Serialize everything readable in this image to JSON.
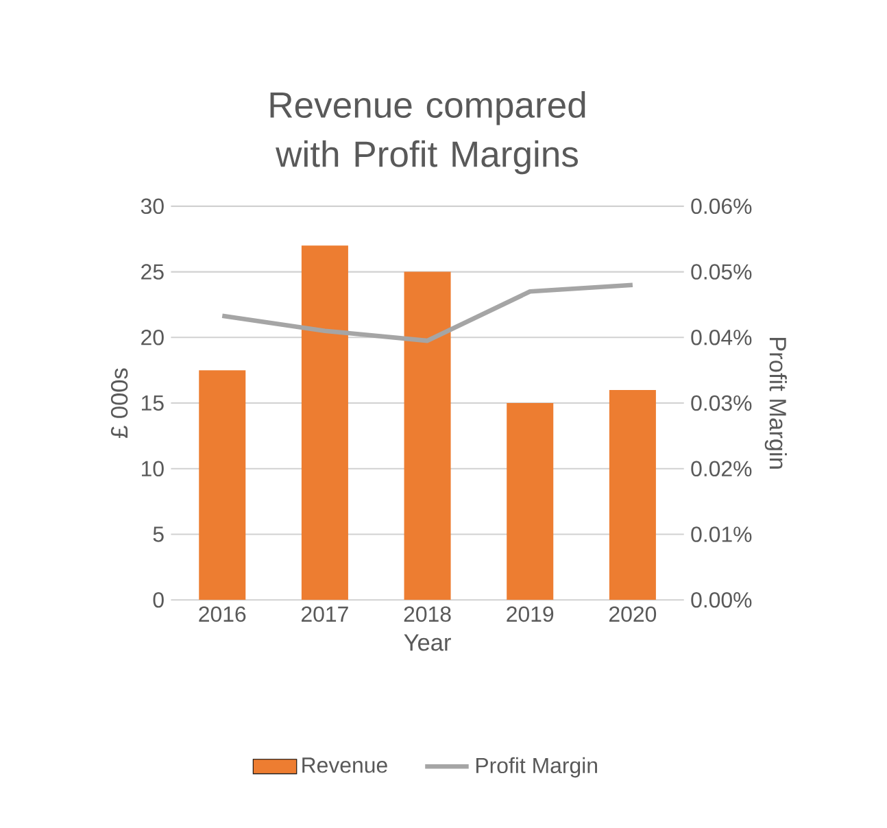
{
  "chart_data": {
    "type": "bar",
    "title": "Revenue compared with Profit Margins",
    "xlabel": "Year",
    "ylabel": "£ 000s",
    "y2label": "Profit Margin",
    "categories": [
      "2016",
      "2017",
      "2018",
      "2019",
      "2020"
    ],
    "series": [
      {
        "name": "Revenue",
        "color": "#ed7d31",
        "values": [
          17.5,
          27,
          25,
          15,
          16
        ]
      },
      {
        "name": "Profit Margin",
        "type": "line",
        "axis": "y2",
        "color": "#a5a5a5",
        "values": [
          0.0433,
          0.041,
          0.0395,
          0.047,
          0.048
        ]
      }
    ],
    "ylim": [
      0,
      30
    ],
    "yticks": [
      0,
      5,
      10,
      15,
      20,
      25,
      30
    ],
    "y2lim": [
      0,
      0.06
    ],
    "y2ticks": [
      {
        "value": 0,
        "label": "0.00%"
      },
      {
        "value": 0.01,
        "label": "0.01%"
      },
      {
        "value": 0.02,
        "label": "0.02%"
      },
      {
        "value": 0.03,
        "label": "0.03%"
      },
      {
        "value": 0.04,
        "label": "0.04%"
      },
      {
        "value": 0.05,
        "label": "0.05%"
      },
      {
        "value": 0.06,
        "label": "0.06%"
      }
    ],
    "grid": "y",
    "legend": "bottom"
  }
}
